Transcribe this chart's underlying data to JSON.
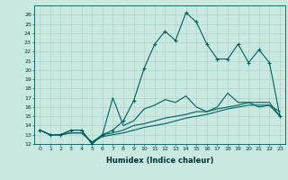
{
  "xlabel": "Humidex (Indice chaleur)",
  "ylabel": "",
  "background_color": "#c8e8e0",
  "line_color": "#006060",
  "xlim": [
    -0.5,
    23.5
  ],
  "ylim": [
    12,
    27
  ],
  "yticks": [
    12,
    13,
    14,
    15,
    16,
    17,
    18,
    19,
    20,
    21,
    22,
    23,
    24,
    25,
    26
  ],
  "xticks": [
    0,
    1,
    2,
    3,
    4,
    5,
    6,
    7,
    8,
    9,
    10,
    11,
    12,
    13,
    14,
    15,
    16,
    17,
    18,
    19,
    20,
    21,
    22,
    23
  ],
  "series": [
    [
      13.5,
      13.0,
      13.0,
      13.5,
      13.5,
      12.0,
      13.0,
      13.5,
      14.5,
      16.7,
      20.2,
      22.8,
      24.2,
      23.2,
      26.2,
      25.2,
      22.8,
      21.2,
      21.2,
      22.8,
      20.8,
      22.2,
      20.8,
      15.0
    ],
    [
      13.5,
      13.0,
      13.0,
      13.5,
      13.5,
      12.0,
      13.0,
      17.0,
      14.0,
      14.5,
      15.8,
      16.2,
      16.8,
      16.5,
      17.2,
      16.0,
      15.5,
      16.0,
      17.5,
      16.5,
      16.5,
      16.0,
      16.2,
      15.5
    ],
    [
      13.5,
      13.0,
      13.0,
      13.2,
      13.2,
      12.2,
      13.0,
      13.2,
      13.5,
      14.0,
      14.2,
      14.5,
      14.8,
      15.0,
      15.2,
      15.5,
      15.5,
      15.8,
      16.0,
      16.2,
      16.5,
      16.5,
      16.5,
      15.0
    ],
    [
      13.5,
      13.0,
      13.0,
      13.2,
      13.2,
      12.2,
      12.8,
      13.0,
      13.2,
      13.5,
      13.8,
      14.0,
      14.2,
      14.5,
      14.8,
      15.0,
      15.2,
      15.5,
      15.8,
      16.0,
      16.2,
      16.2,
      16.2,
      15.0
    ]
  ]
}
